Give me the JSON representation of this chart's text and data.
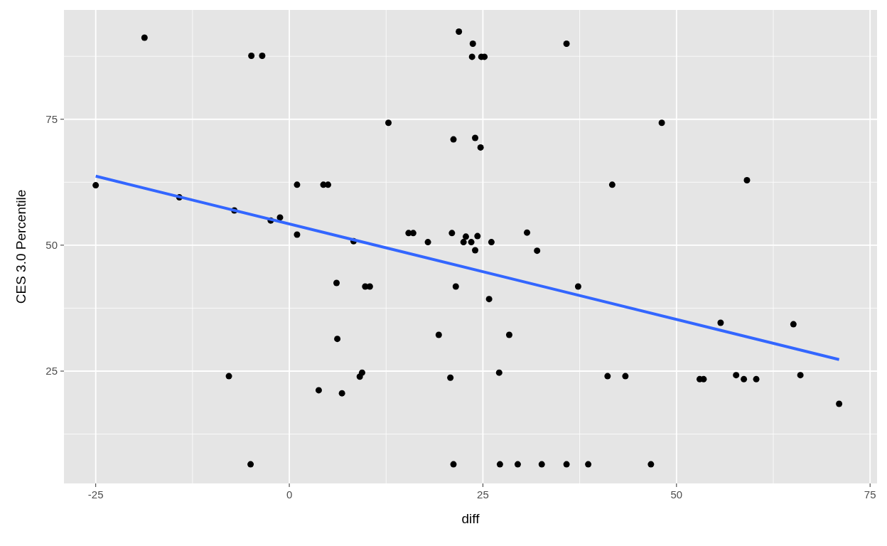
{
  "chart_data": {
    "type": "scatter",
    "xlabel": "diff",
    "ylabel": "CES 3.0 Percentile",
    "xlim": [
      -29.1,
      75.9
    ],
    "ylim": [
      2.7,
      96.7
    ],
    "xticks": [
      -25,
      0,
      25,
      50,
      75
    ],
    "yticks": [
      25,
      50,
      75
    ],
    "grid": true,
    "series": [
      {
        "color": "#000000",
        "marker": "circle",
        "x": [
          -25.0,
          -18.7,
          -14.2,
          -7.8,
          -7.1,
          -5.0,
          -4.9,
          -3.5,
          -2.4,
          -1.2,
          1.0,
          1.0,
          3.8,
          4.4,
          5.0,
          6.1,
          6.2,
          6.8,
          8.3,
          9.1,
          9.4,
          9.8,
          10.4,
          12.8,
          15.4,
          16.0,
          17.9,
          19.3,
          20.8,
          21.0,
          21.2,
          21.2,
          21.5,
          21.9,
          22.5,
          22.8,
          23.5,
          23.6,
          23.7,
          24.0,
          24.0,
          24.3,
          24.7,
          24.8,
          25.2,
          25.8,
          26.1,
          27.1,
          27.2,
          28.4,
          29.5,
          30.7,
          32.0,
          32.6,
          35.8,
          35.8,
          37.3,
          38.6,
          41.1,
          41.7,
          43.4,
          46.7,
          48.1,
          53.0,
          53.5,
          55.7,
          57.7,
          58.7,
          59.1,
          60.3,
          65.1,
          66.0,
          71.0
        ],
        "values": [
          61.9,
          91.2,
          59.5,
          24.0,
          56.9,
          6.5,
          87.6,
          87.6,
          54.9,
          55.5,
          62.0,
          52.1,
          21.2,
          62.0,
          62.0,
          42.5,
          31.4,
          20.6,
          50.8,
          23.9,
          24.7,
          41.8,
          41.8,
          74.3,
          52.4,
          52.4,
          50.6,
          32.2,
          23.7,
          52.4,
          71.0,
          6.5,
          41.8,
          92.4,
          50.6,
          51.7,
          50.6,
          87.4,
          90.0,
          49.0,
          71.3,
          51.8,
          69.4,
          87.4,
          87.4,
          39.3,
          50.6,
          24.7,
          6.5,
          32.2,
          6.5,
          52.5,
          48.9,
          6.5,
          90.0,
          6.5,
          41.8,
          6.5,
          24.0,
          62.0,
          24.0,
          6.5,
          74.3,
          23.4,
          23.4,
          34.6,
          24.2,
          23.4,
          62.9,
          23.4,
          34.3,
          24.2,
          18.5
        ]
      },
      {
        "type": "line",
        "color": "#3366ff",
        "x": [
          -25,
          71
        ],
        "values": [
          63.7,
          27.3
        ]
      }
    ]
  }
}
